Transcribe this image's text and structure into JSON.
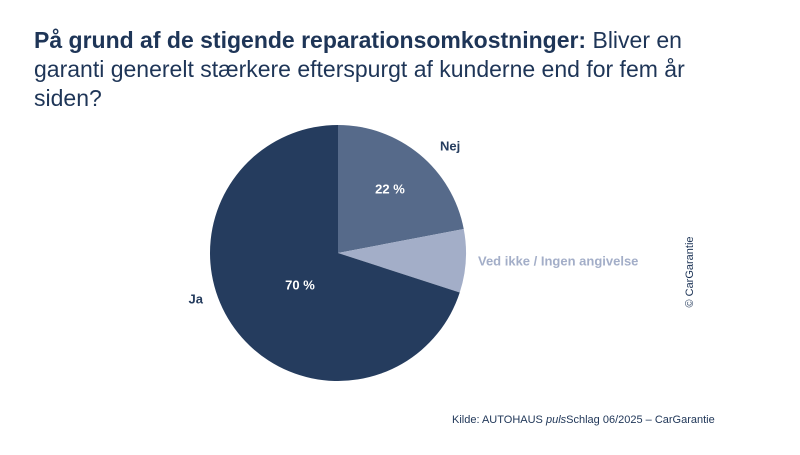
{
  "chart_data": {
    "type": "pie",
    "title_bold": "På grund af de stigende reparationsomkostninger:",
    "title": "Bliver en garanti generelt stærkere efterspurgt af kunderne end for fem år siden?",
    "categories": [
      "Nej",
      "Ved ikke / Ingen angivelse",
      "Ja"
    ],
    "values": [
      22,
      8,
      70
    ],
    "value_labels": [
      "22 %",
      null,
      "70 %"
    ],
    "colors": [
      "#566a8a",
      "#a3aec8",
      "#253c5e"
    ],
    "label_colors": [
      "#253c5e",
      "#a3aec8",
      "#253c5e"
    ],
    "source": [
      "Kilde: AUTOHAUS ",
      "puls",
      "Schlag 06/2025 – CarGarantie"
    ],
    "copyright": "© CarGarantie"
  }
}
